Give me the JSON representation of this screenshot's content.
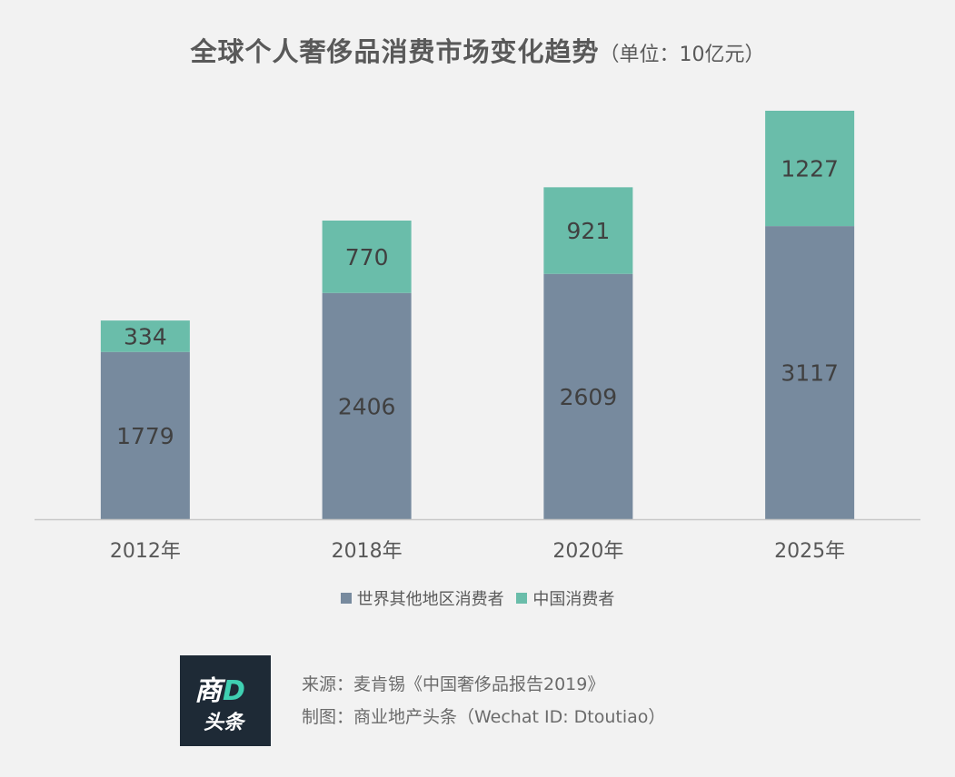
{
  "title": "全球个人奢侈品消费市场变化趋势",
  "title_unit": "（单位：10亿元）",
  "colors": {
    "rest_of_world": "#778a9e",
    "china": "#6abdaa",
    "axis": "#c8c8c8",
    "label_text": "#404040",
    "tick_text": "#595959"
  },
  "chart_data": {
    "type": "bar",
    "stacked": true,
    "categories": [
      "2012年",
      "2018年",
      "2020年",
      "2025年"
    ],
    "series": [
      {
        "name": "世界其他地区消费者",
        "values": [
          1779,
          2406,
          2609,
          3117
        ]
      },
      {
        "name": "中国消费者",
        "values": [
          334,
          770,
          921,
          1227
        ]
      }
    ],
    "title": "全球个人奢侈品消费市场变化趋势",
    "xlabel": "",
    "ylabel": "",
    "ylim": [
      0,
      4344
    ],
    "grid": false,
    "legend_position": "bottom"
  },
  "legend": {
    "items": [
      {
        "label": "世界其他地区消费者",
        "color": "#778a9e"
      },
      {
        "label": "中国消费者",
        "color": "#6abdaa"
      }
    ]
  },
  "logo": {
    "line1_a": "商",
    "line1_b": "D",
    "line2": "头条"
  },
  "source": {
    "line1": "来源：麦肯锡《中国奢侈品报告2019》",
    "line2": "制图：商业地产头条（Wechat ID: Dtoutiao）"
  }
}
